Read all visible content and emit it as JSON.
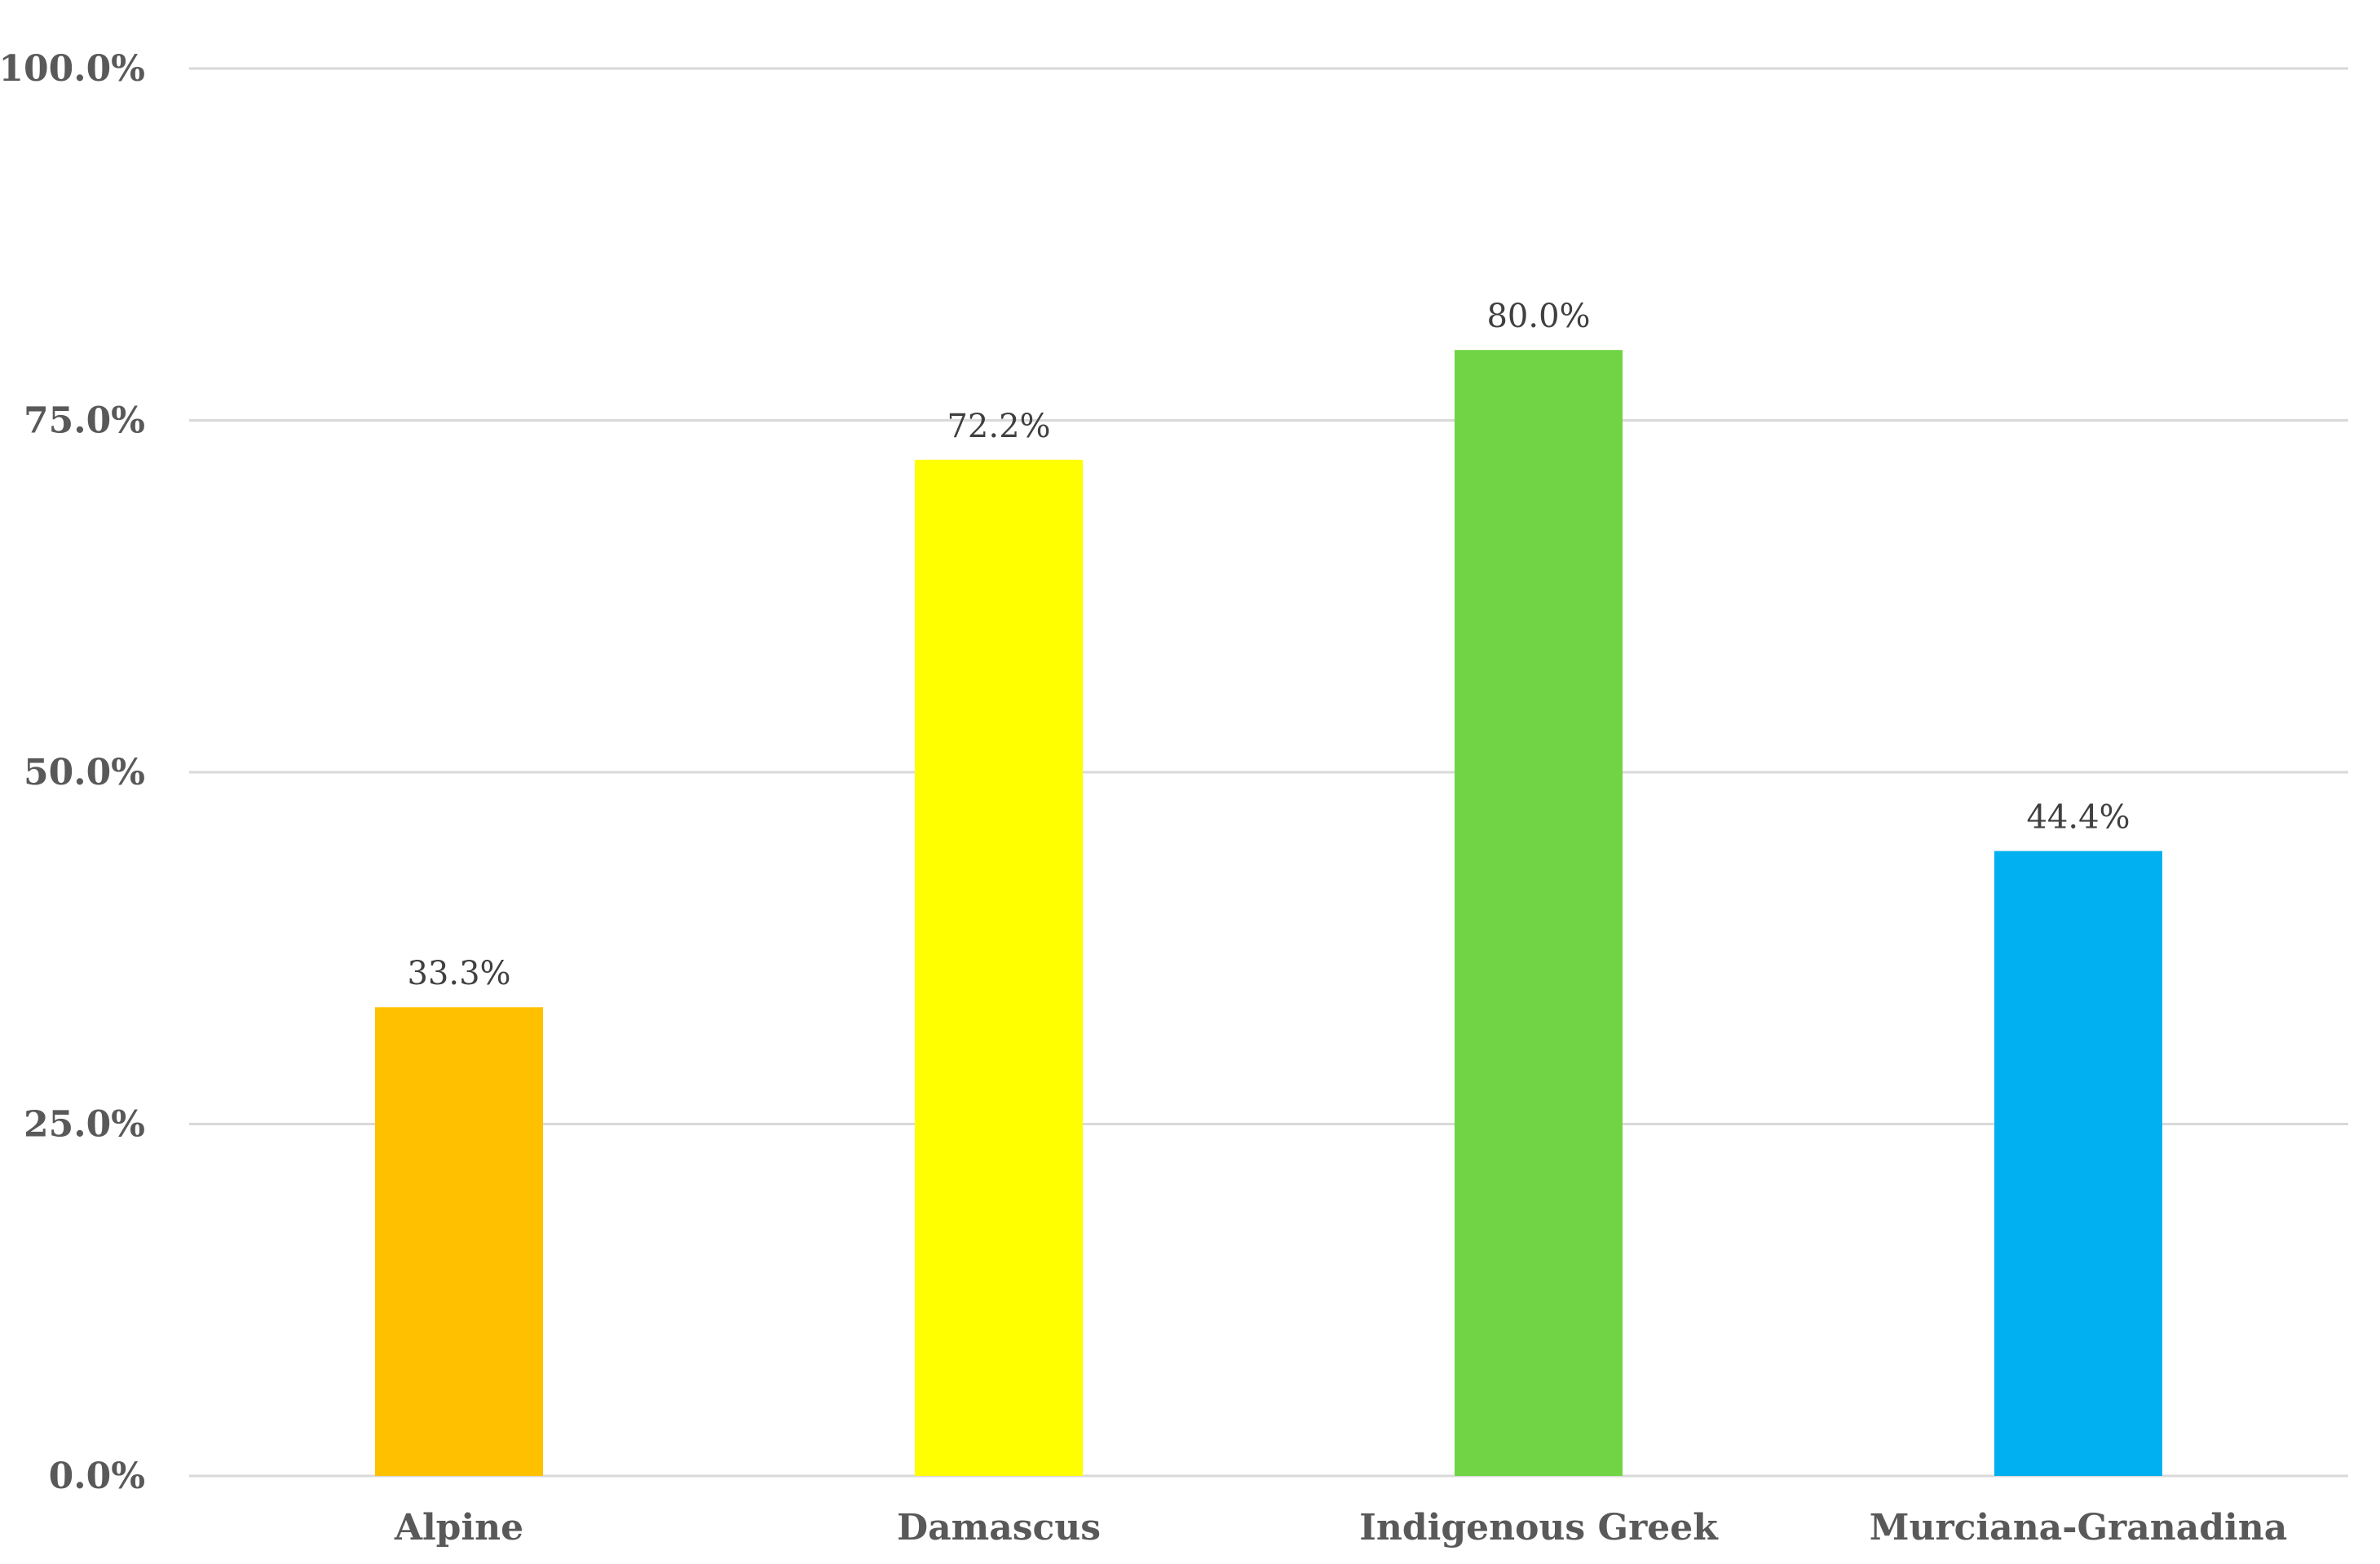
{
  "chart_data": {
    "type": "bar",
    "title": "",
    "xlabel": "",
    "ylabel": "",
    "categories": [
      "Alpine",
      "Damascus",
      "Indigenous Greek",
      "Murciana-Granadina"
    ],
    "values": [
      33.3,
      72.2,
      80.0,
      44.4
    ],
    "value_labels": [
      "33.3%",
      "72.2%",
      "80.0%",
      "44.4%"
    ],
    "bar_colors": [
      "#FFC000",
      "#FFFF00",
      "#70D444",
      "#00B0F0"
    ],
    "ylim": [
      0,
      100
    ],
    "yticks": [
      0,
      25,
      50,
      75,
      100
    ],
    "ytick_labels": [
      "0.0%",
      "25.0%",
      "50.0%",
      "75.0%",
      "100.0%"
    ],
    "grid": true,
    "legend": "none"
  }
}
